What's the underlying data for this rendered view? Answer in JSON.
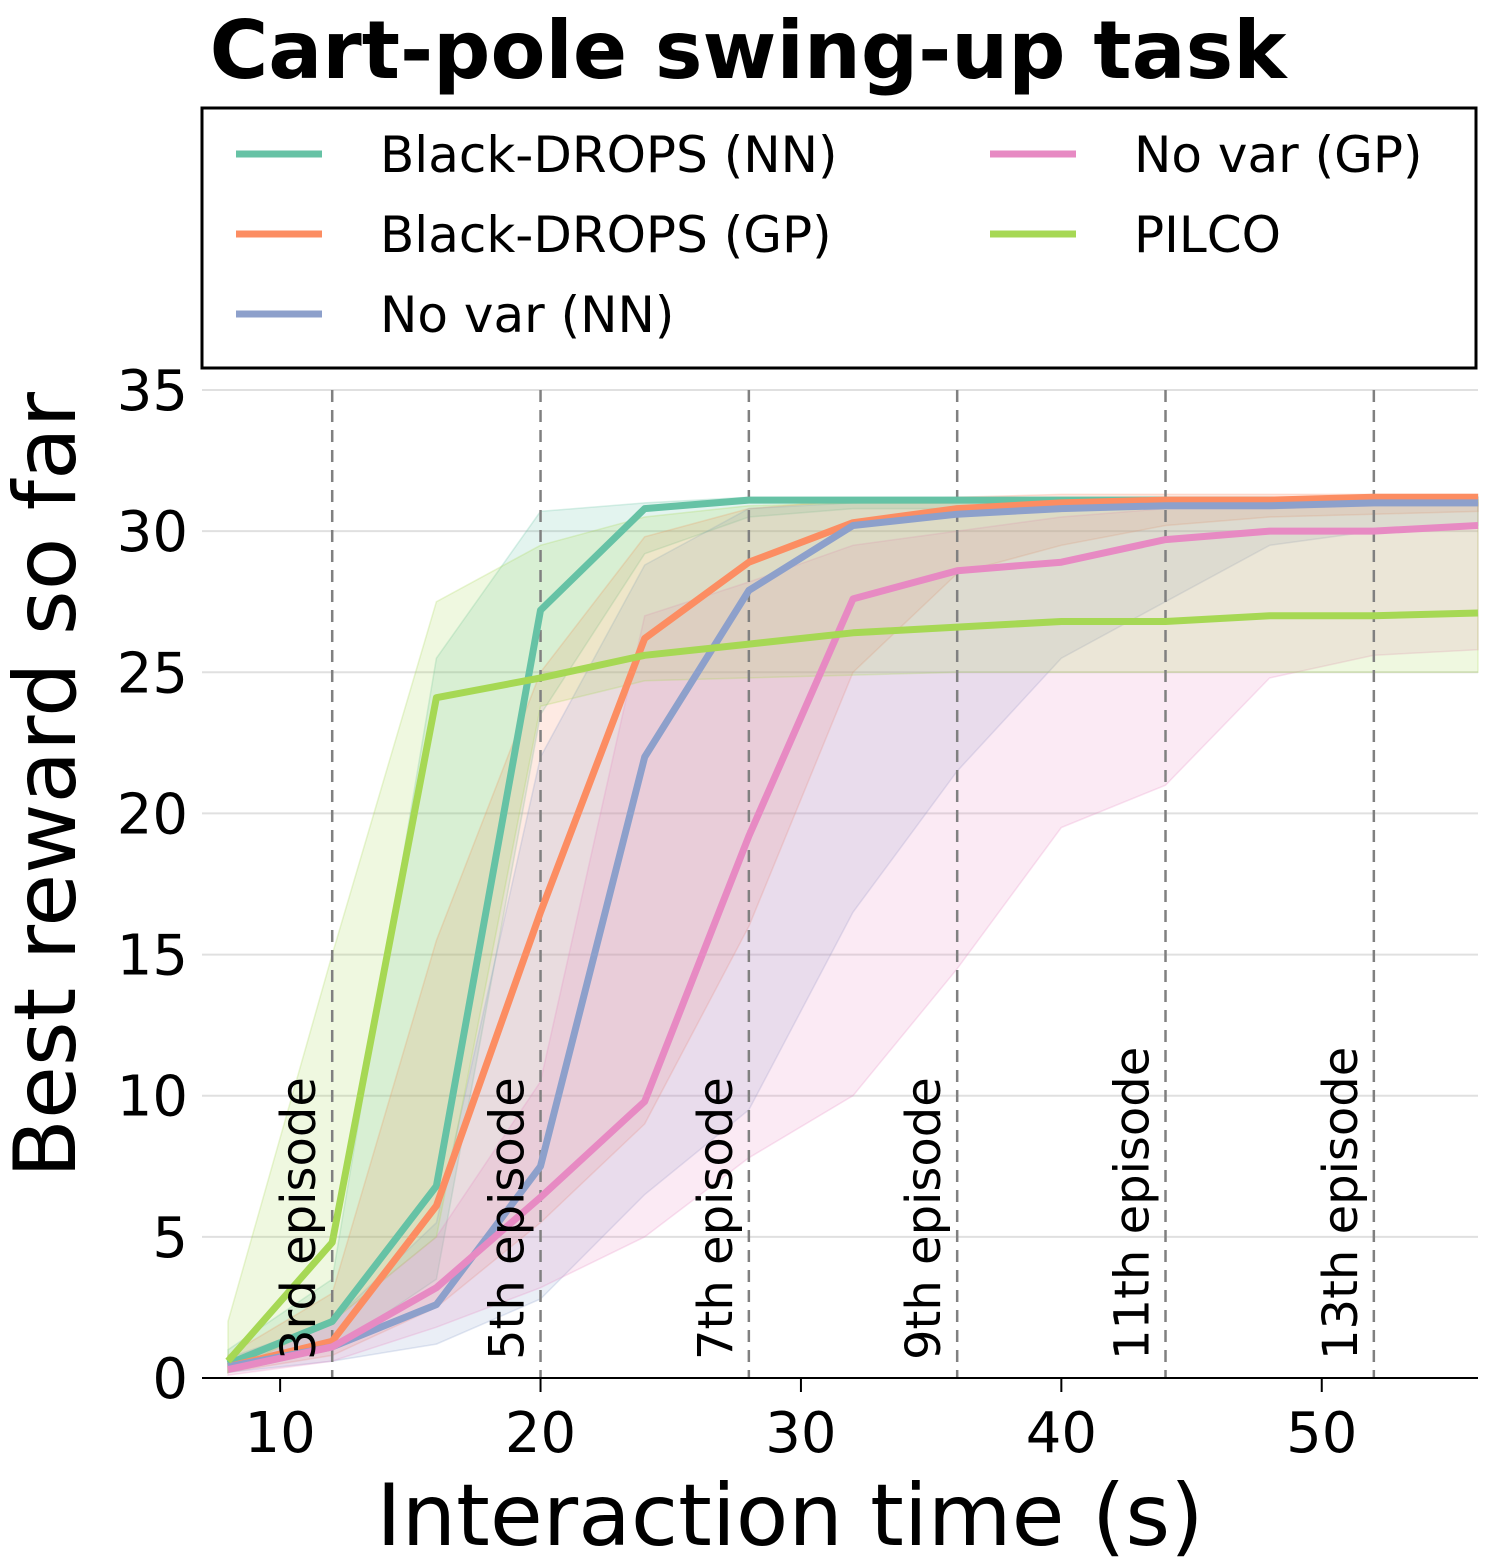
{
  "chart_data": {
    "type": "line",
    "title": "Cart-pole swing-up task",
    "xlabel": "Interaction time (s)",
    "ylabel": "Best reward so far",
    "xlim": [
      7,
      56
    ],
    "ylim": [
      0,
      35
    ],
    "xticks": [
      10,
      20,
      30,
      40,
      50
    ],
    "yticks": [
      0,
      5,
      10,
      15,
      20,
      25,
      30,
      35
    ],
    "grid": "horizontal",
    "legend_position": "top",
    "x": [
      8,
      12,
      16,
      20,
      24,
      28,
      32,
      36,
      40,
      44,
      48,
      52,
      56
    ],
    "episode_markers": [
      {
        "x": 12,
        "label": "3rd episode"
      },
      {
        "x": 20,
        "label": "5th episode"
      },
      {
        "x": 28,
        "label": "7th episode"
      },
      {
        "x": 36,
        "label": "9th episode"
      },
      {
        "x": 44,
        "label": "11th episode"
      },
      {
        "x": 52,
        "label": "13th episode"
      }
    ],
    "series": [
      {
        "name": "Black-DROPS (NN)",
        "color": "#66c2a5",
        "values": [
          0.5,
          2.0,
          6.8,
          27.2,
          30.8,
          31.1,
          31.1,
          31.1,
          31.1,
          31.1,
          31.1,
          31.1,
          31.1
        ],
        "lower": [
          0.2,
          1.0,
          3.5,
          23.5,
          29.2,
          30.5,
          30.8,
          30.8,
          30.9,
          30.9,
          30.9,
          30.9,
          30.9
        ],
        "upper": [
          1.0,
          3.5,
          25.5,
          30.7,
          31.0,
          31.2,
          31.2,
          31.2,
          31.2,
          31.2,
          31.2,
          31.2,
          31.2
        ]
      },
      {
        "name": "Black-DROPS (GP)",
        "color": "#fc8d62",
        "values": [
          0.4,
          1.3,
          6.1,
          16.5,
          26.2,
          28.9,
          30.3,
          30.8,
          31.0,
          31.1,
          31.1,
          31.2,
          31.2
        ],
        "lower": [
          0.2,
          0.8,
          2.5,
          5.5,
          9.0,
          16.0,
          25.0,
          28.5,
          29.5,
          30.2,
          30.5,
          30.6,
          30.7
        ],
        "upper": [
          0.8,
          3.0,
          15.5,
          25.0,
          29.8,
          30.8,
          31.1,
          31.2,
          31.3,
          31.3,
          31.3,
          31.3,
          31.3
        ]
      },
      {
        "name": "No var (NN)",
        "color": "#8da0cb",
        "values": [
          0.4,
          1.1,
          2.6,
          7.5,
          22.0,
          27.9,
          30.2,
          30.6,
          30.8,
          30.9,
          30.9,
          31.0,
          31.0
        ],
        "lower": [
          0.2,
          0.6,
          1.2,
          2.8,
          6.5,
          9.5,
          16.5,
          21.5,
          25.5,
          27.5,
          29.5,
          30.0,
          30.2
        ],
        "upper": [
          0.7,
          2.0,
          5.5,
          22.0,
          28.8,
          30.8,
          31.0,
          31.1,
          31.2,
          31.2,
          31.2,
          31.2,
          31.2
        ]
      },
      {
        "name": "No var (GP)",
        "color": "#e78ac3",
        "values": [
          0.3,
          1.1,
          3.2,
          6.4,
          9.8,
          19.2,
          27.6,
          28.6,
          28.9,
          29.7,
          30.0,
          30.0,
          30.2
        ],
        "lower": [
          0.1,
          0.6,
          1.8,
          3.2,
          5.0,
          7.8,
          10.0,
          14.5,
          19.5,
          21.0,
          24.8,
          25.6,
          25.8
        ],
        "upper": [
          0.6,
          2.0,
          5.0,
          10.5,
          27.0,
          28.2,
          29.5,
          30.0,
          30.5,
          30.8,
          30.8,
          30.9,
          31.0
        ]
      },
      {
        "name": "PILCO",
        "color": "#a6d854",
        "values": [
          0.6,
          4.8,
          24.1,
          24.8,
          25.6,
          26.0,
          26.4,
          26.6,
          26.8,
          26.8,
          27.0,
          27.0,
          27.1
        ],
        "lower": [
          0.2,
          2.0,
          5.0,
          23.8,
          24.7,
          24.8,
          24.9,
          25.0,
          25.0,
          25.0,
          25.0,
          25.0,
          25.0
        ],
        "upper": [
          2.0,
          15.0,
          27.5,
          29.5,
          30.5,
          30.9,
          31.0,
          31.0,
          31.1,
          31.1,
          31.1,
          31.1,
          31.1
        ]
      }
    ]
  }
}
